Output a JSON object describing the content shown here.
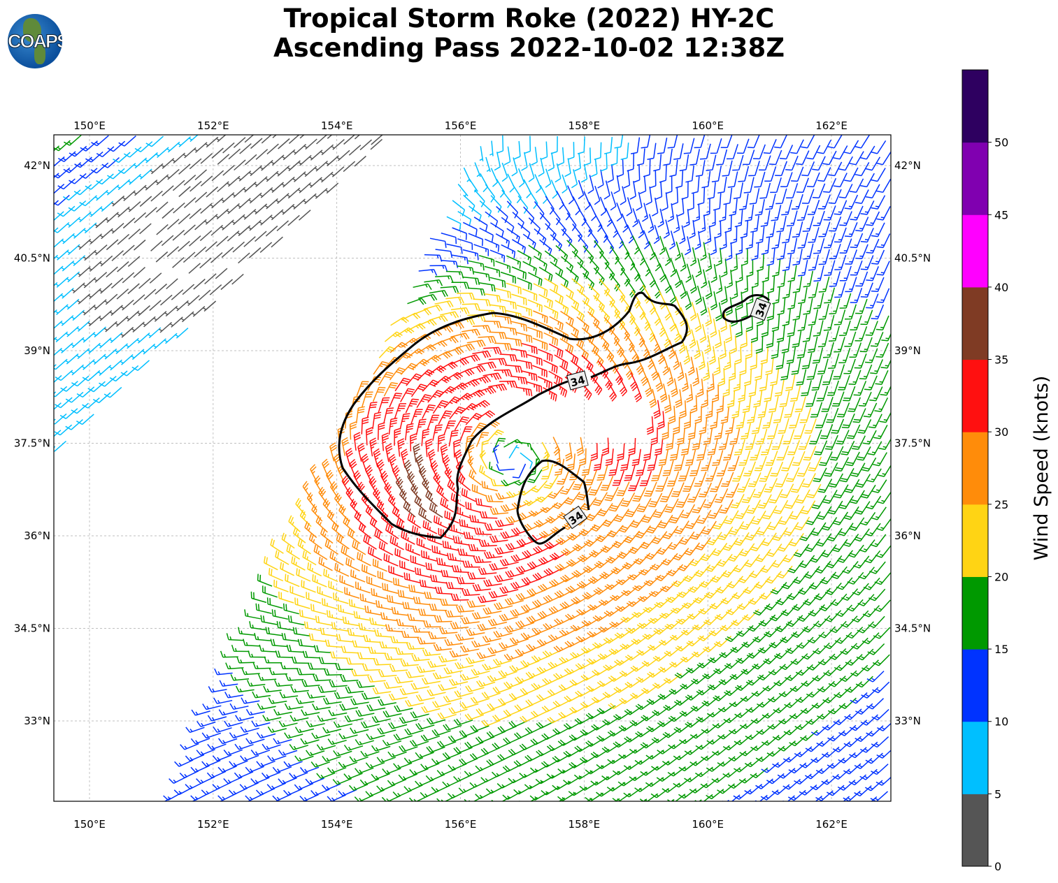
{
  "title": {
    "line1": "Tropical Storm Roke (2022) HY-2C",
    "line2": "Ascending Pass 2022-10-02 12:38Z"
  },
  "logo": {
    "text": "COAPS"
  },
  "map": {
    "lon_range": [
      149.42,
      162.96
    ],
    "lat_range": [
      31.7,
      42.5
    ],
    "lon_ticks": [
      {
        "value": 150,
        "label": "150°E"
      },
      {
        "value": 152,
        "label": "152°E"
      },
      {
        "value": 154,
        "label": "154°E"
      },
      {
        "value": 156,
        "label": "156°E"
      },
      {
        "value": 158,
        "label": "158°E"
      },
      {
        "value": 160,
        "label": "160°E"
      },
      {
        "value": 162,
        "label": "162°E"
      }
    ],
    "lat_ticks": [
      {
        "value": 42,
        "label": "42°N"
      },
      {
        "value": 40.5,
        "label": "40.5°N"
      },
      {
        "value": 39,
        "label": "39°N"
      },
      {
        "value": 37.5,
        "label": "37.5°N"
      },
      {
        "value": 36,
        "label": "36°N"
      },
      {
        "value": 34.5,
        "label": "34.5°N"
      },
      {
        "value": 33,
        "label": "33°N"
      }
    ],
    "storm_center": {
      "lon": 157.0,
      "lat": 37.1
    },
    "max_wind_knots": 42,
    "contour_level_label": "34",
    "contour_labels": [
      "34",
      "34",
      "34"
    ]
  },
  "colorbar": {
    "label": "Wind Speed (knots)",
    "max": 55,
    "bins": [
      {
        "from": 0,
        "to": 5,
        "color": "#555555"
      },
      {
        "from": 5,
        "to": 10,
        "color": "#00bfff"
      },
      {
        "from": 10,
        "to": 15,
        "color": "#0033ff"
      },
      {
        "from": 15,
        "to": 20,
        "color": "#009900"
      },
      {
        "from": 20,
        "to": 25,
        "color": "#ffd414"
      },
      {
        "from": 25,
        "to": 30,
        "color": "#ff8c0a"
      },
      {
        "from": 30,
        "to": 35,
        "color": "#ff1010"
      },
      {
        "from": 35,
        "to": 40,
        "color": "#7f3b24"
      },
      {
        "from": 40,
        "to": 45,
        "color": "#ff00ff"
      },
      {
        "from": 45,
        "to": 50,
        "color": "#8000b0"
      },
      {
        "from": 50,
        "to": 55,
        "color": "#2e0060"
      }
    ],
    "ticks": [
      "0",
      "5",
      "10",
      "15",
      "20",
      "25",
      "30",
      "35",
      "40",
      "45",
      "50"
    ]
  }
}
